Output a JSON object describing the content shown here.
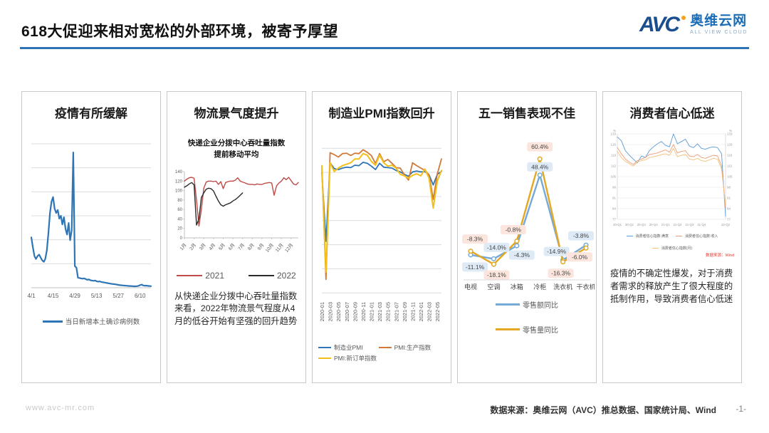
{
  "header": {
    "title": "618大促迎来相对宽松的外部环境，被寄予厚望",
    "logo": {
      "avc": "AVC",
      "name": "奥维云网",
      "tagline": "ALL VIEW CLOUD"
    }
  },
  "footer": {
    "watermark": "www.avc-mr.com",
    "source": "数据来源：奥维云网（AVC）推总数据、国家统计局、Wind",
    "page": "-1-"
  },
  "colors": {
    "accent": "#2E74B5",
    "panel_border": "#c9c9c9"
  },
  "panels": [
    {
      "id": "covid",
      "title": "疫情有所缓解"
    },
    {
      "id": "logistics",
      "title": "物流景气度提升",
      "subtitle": "快递企业分拨中心吞吐量指数\n提前移动平均",
      "note": "从快递企业分拨中心吞吐量指数来看，2022年物流景气程度从4月的低谷开始有坚强的回升趋势"
    },
    {
      "id": "pmi",
      "title": "制造业PMI指数回升"
    },
    {
      "id": "may-sales",
      "title": "五一销售表现不佳"
    },
    {
      "id": "confidence",
      "title": "消费者信心低迷",
      "source_note": "数据来源：Wind",
      "note": "疫情的不确定性爆发，对于消费者需求的释放产生了很大程度的抵制作用，导致消费者信心低迷"
    }
  ],
  "chart_data": [
    {
      "type": "line",
      "title": "疫情有所缓解",
      "x_ticks": [
        "4/1",
        "4/15",
        "4/29",
        "5/13",
        "5/27",
        "6/10"
      ],
      "x_tick_interval": 14,
      "ylim": [
        0,
        100
      ],
      "y_axis": "unlabeled relative index (daily new local confirmed cases)",
      "grid": true,
      "legend_position": "bottom",
      "series": [
        {
          "name": "当日新增本土确诊病例数",
          "color": "#2E75B6",
          "values": [
            35,
            28,
            22,
            20,
            22,
            23,
            21,
            19,
            18,
            20,
            26,
            38,
            52,
            60,
            63,
            55,
            52,
            54,
            48,
            50,
            44,
            49,
            41,
            37,
            45,
            33,
            40,
            94,
            15,
            14,
            7,
            6.8,
            6.5,
            6.3,
            6.5,
            6,
            5.5,
            5.8,
            5.2,
            5,
            4.8,
            5,
            4.5,
            4.2,
            4.4,
            4,
            3.8,
            3.6,
            3.4,
            3.2,
            3,
            2.8,
            2.6,
            2.5,
            2.4,
            2.2,
            2,
            1.8,
            1.7,
            1.6,
            1.5,
            1.4,
            1.3,
            1.2,
            1.2,
            1.1,
            1,
            1,
            1.1,
            1.3,
            1.8,
            2.2,
            1.6,
            1.4,
            1.5,
            1.3,
            1.2,
            1.1
          ]
        }
      ]
    },
    {
      "type": "line",
      "title": "快递企业分拨中心吞吐量指数 提前移动平均",
      "x_ticks": [
        "1月",
        "2月",
        "3月",
        "4月",
        "5月",
        "6月",
        "7月",
        "8月",
        "9月",
        "10月",
        "11月",
        "12月"
      ],
      "points_per_month": 4,
      "ylim": [
        0,
        140
      ],
      "y_ticks": [
        0,
        20,
        40,
        60,
        80,
        100,
        120,
        140
      ],
      "grid": false,
      "legend_position": "bottom",
      "series": [
        {
          "name": "2021",
          "color": "#BE4B48",
          "values": [
            120,
            124,
            127,
            128,
            126,
            80,
            25,
            60,
            105,
            118,
            120,
            120,
            119,
            120,
            113,
            119,
            104,
            117,
            119,
            120,
            120,
            122,
            127,
            120,
            118,
            116,
            114,
            113,
            113,
            112,
            114,
            113,
            113,
            115,
            116,
            117,
            116,
            90,
            110,
            116,
            120,
            127,
            123,
            128,
            121,
            114,
            112,
            117
          ]
        },
        {
          "name": "2022",
          "color": "#2B2B2B",
          "values": [
            107,
            110,
            114,
            117,
            112,
            27,
            40,
            85,
            95,
            103,
            105,
            104,
            99,
            88,
            78,
            70,
            67,
            70,
            72,
            74,
            78,
            81,
            85,
            90,
            95
          ]
        }
      ]
    },
    {
      "type": "line",
      "title": "制造业PMI指数回升",
      "x": [
        "2020-01",
        "2020-02",
        "2020-03",
        "2020-04",
        "2020-05",
        "2020-06",
        "2020-07",
        "2020-08",
        "2020-09",
        "2020-10",
        "2020-11",
        "2020-12",
        "2021-01",
        "2021-02",
        "2021-03",
        "2021-04",
        "2021-05",
        "2021-06",
        "2021-07",
        "2021-08",
        "2021-09",
        "2021-10",
        "2021-11",
        "2021-12",
        "2022-01",
        "2022-02",
        "2022-03",
        "2022-04",
        "2022-05",
        "2022-06"
      ],
      "x_ticks": [
        "2020-01",
        "2020-03",
        "2020-05",
        "2020-07",
        "2020-09",
        "2020-11",
        "2021-01",
        "2021-03",
        "2021-05",
        "2021-07",
        "2021-09",
        "2021-11",
        "2022-01",
        "2022-03",
        "2022-05"
      ],
      "ylim": [
        24,
        58
      ],
      "grid_values": [
        25,
        30,
        35,
        40,
        45,
        50,
        55
      ],
      "legend_position": "bottom",
      "series": [
        {
          "name": "制造业PMI",
          "color": "#2E75B6",
          "values": [
            50.0,
            35.7,
            52.0,
            50.8,
            50.6,
            50.9,
            51.1,
            51.0,
            51.5,
            51.4,
            52.1,
            51.9,
            51.3,
            50.6,
            51.9,
            51.1,
            51.0,
            50.9,
            50.4,
            50.1,
            49.6,
            49.2,
            50.1,
            50.3,
            50.1,
            50.2,
            49.5,
            47.4,
            49.6,
            50.2
          ]
        },
        {
          "name": "PMI:生产指数",
          "color": "#D0793A",
          "values": [
            51.3,
            27.8,
            54.1,
            53.7,
            53.2,
            53.9,
            54.0,
            53.5,
            54.0,
            53.9,
            54.7,
            54.2,
            53.5,
            51.9,
            53.9,
            52.2,
            52.7,
            51.9,
            51.0,
            50.9,
            49.5,
            48.4,
            52.0,
            51.4,
            50.9,
            50.4,
            49.5,
            44.4,
            49.7,
            52.8
          ]
        },
        {
          "name": "PMI:新订单指数",
          "color": "#F3C019",
          "values": [
            51.4,
            29.3,
            52.0,
            50.2,
            50.9,
            51.4,
            51.7,
            52.0,
            52.8,
            52.8,
            53.9,
            53.6,
            52.3,
            51.5,
            53.6,
            52.0,
            51.3,
            51.5,
            50.9,
            49.6,
            49.3,
            48.8,
            49.4,
            49.7,
            49.3,
            50.7,
            48.8,
            42.6,
            48.2,
            50.4
          ]
        }
      ]
    },
    {
      "type": "line",
      "title": "五一销售表现不佳",
      "categories": [
        "电视",
        "空调",
        "冰箱",
        "冷柜",
        "洗衣机",
        "干衣机"
      ],
      "unit": "%",
      "data_labels": true,
      "legend_position": "bottom",
      "series": [
        {
          "name": "零售额同比",
          "color": "#74A9D8",
          "label_bg": "#DEEAF6",
          "values": [
            -11.1,
            -14.0,
            -4.3,
            48.4,
            -14.9,
            -3.8
          ]
        },
        {
          "name": "零售量同比",
          "color": "#E3A723",
          "label_bg": "#FBE5DD",
          "values": [
            -8.3,
            -18.1,
            -0.8,
            60.4,
            -16.3,
            -6.0
          ]
        }
      ]
    },
    {
      "type": "line",
      "title": "消费者信心低迷",
      "x_ticks": [
        "20-Q1",
        "20-Q2",
        "20-Q3",
        "20-Q4",
        "21-Q1",
        "21-Q2",
        "21-Q3",
        "21-Q4",
        "22-Q2"
      ],
      "x_tick_indices": [
        0,
        3,
        6,
        9,
        12,
        15,
        18,
        21,
        27
      ],
      "ylim": [
        77,
        133
      ],
      "y_ticks": [
        77,
        84,
        91,
        98,
        105,
        112,
        119,
        126,
        133
      ],
      "y_unit": "%",
      "dual_axis": true,
      "grid": true,
      "legend_position": "bottom",
      "series": [
        {
          "name": "消费者信心指数:满意",
          "color": "#5B9BD5",
          "values": [
            131,
            128.5,
            122,
            119,
            116.5,
            114,
            118.5,
            117.5,
            122,
            124.5,
            126.5,
            128,
            125.5,
            124.5,
            133,
            126.5,
            128,
            129.5,
            125,
            124,
            126.5,
            123.5,
            123,
            124,
            124.5,
            124,
            120,
            79
          ]
        },
        {
          "name": "消费者信心指数:收入",
          "color": "#ED9C7A",
          "values": [
            124,
            120,
            116.5,
            114.5,
            113,
            115.5,
            116.5,
            117.5,
            119.5,
            120,
            120.5,
            121.5,
            122.5,
            121,
            126,
            120.5,
            121.5,
            122,
            118.5,
            118,
            119.5,
            117.5,
            117,
            118,
            119,
            118.5,
            112,
            84
          ]
        },
        {
          "name": "消费者信心指数(月)",
          "color": "#F2C178",
          "values": [
            121.5,
            117.5,
            115,
            113.5,
            112,
            114.5,
            115.5,
            116,
            117.5,
            118,
            118.5,
            119.5,
            120,
            119,
            123.5,
            118,
            119,
            119.5,
            116.5,
            116,
            117,
            115.5,
            115,
            116,
            117,
            116.5,
            110,
            87
          ]
        }
      ]
    }
  ]
}
